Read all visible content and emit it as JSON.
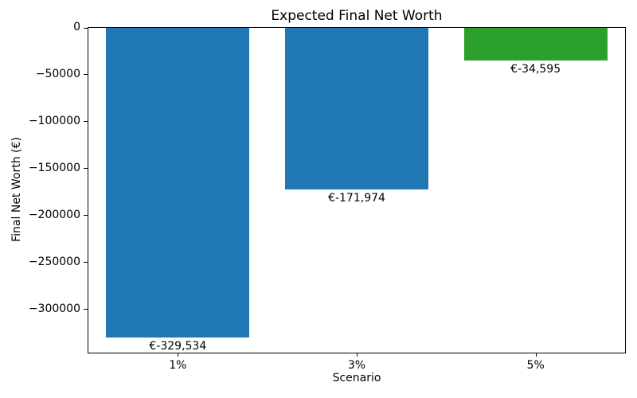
{
  "chart_data": {
    "type": "bar",
    "title": "Expected Final Net Worth",
    "xlabel": "Scenario",
    "ylabel": "Final Net Worth (€)",
    "categories": [
      "1%",
      "3%",
      "5%"
    ],
    "values": [
      -329534,
      -171974,
      -34595
    ],
    "bar_labels": [
      "€-329,534",
      "€-171,974",
      "€-34,595"
    ],
    "bar_colors": [
      "#1f77b4",
      "#1f77b4",
      "#2ca02c"
    ],
    "ylim": [
      -346000,
      0
    ],
    "yticks": [
      {
        "value": 0,
        "label": "0"
      },
      {
        "value": -50000,
        "label": "−50000"
      },
      {
        "value": -100000,
        "label": "−100000"
      },
      {
        "value": -150000,
        "label": "−150000"
      },
      {
        "value": -200000,
        "label": "−200000"
      },
      {
        "value": -250000,
        "label": "−250000"
      },
      {
        "value": -300000,
        "label": "−300000"
      }
    ],
    "grid": false,
    "legend_position": "none"
  }
}
